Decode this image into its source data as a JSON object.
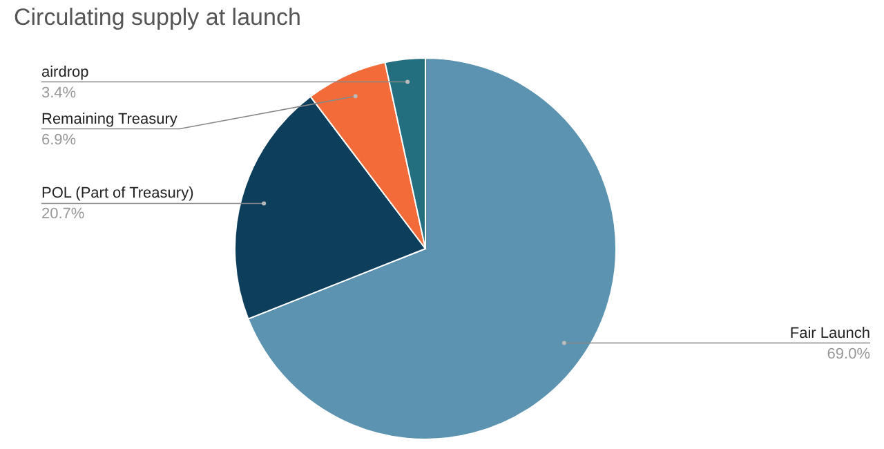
{
  "chart_data": {
    "type": "pie",
    "title": "Circulating supply at launch",
    "categories": [
      "Fair Launch",
      "POL (Part of Treasury)",
      "Remaining Treasury",
      "airdrop"
    ],
    "values": [
      69.0,
      20.7,
      6.9,
      3.4
    ],
    "value_labels": [
      "69.0%",
      "20.7%",
      "6.9%",
      "3.4%"
    ],
    "colors": [
      "#5b93b0",
      "#0d3f5c",
      "#f26b38",
      "#236f80"
    ],
    "legend": false
  }
}
